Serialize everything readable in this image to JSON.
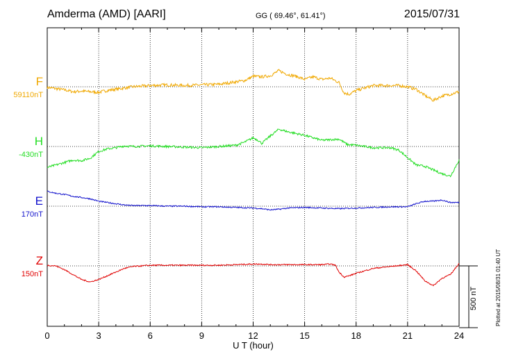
{
  "header": {
    "station": "Amderma (AMD)  [AARI]",
    "coords": "GG ( 69.46°,  61.41°)",
    "date": "2015/07/31"
  },
  "footer": {
    "xlabel": "U T (hour)",
    "plotted": "Plotted at 2015/08/31 01:40 UT",
    "scale_label": "500 nT"
  },
  "chart_data": {
    "type": "line",
    "x_unit": "hour (UT)",
    "xlim": [
      0,
      24
    ],
    "x_ticks": [
      "0",
      "3",
      "6",
      "9",
      "12",
      "15",
      "18",
      "21",
      "24"
    ],
    "grid": true,
    "scale_bar_nT": 500,
    "series": [
      {
        "name": "F",
        "baseline_label": "59110nT",
        "color": "#f0a800",
        "noise": 12,
        "x": [
          0,
          0.5,
          1,
          1.5,
          2,
          2.5,
          3,
          3.5,
          4,
          4.5,
          5,
          6,
          7,
          8,
          9,
          10,
          11,
          11.5,
          12,
          12.5,
          13,
          13.5,
          14,
          14.5,
          15,
          15.5,
          16,
          16.5,
          17,
          17.3,
          17.6,
          18,
          18.5,
          19,
          20,
          20.5,
          21,
          21.5,
          22,
          22.5,
          23,
          23.5,
          24
        ],
        "y": [
          -5,
          -15,
          -25,
          -40,
          -35,
          -40,
          -45,
          -30,
          -20,
          -10,
          0,
          10,
          15,
          10,
          15,
          20,
          40,
          50,
          85,
          80,
          90,
          130,
          100,
          85,
          60,
          80,
          60,
          70,
          35,
          -50,
          -60,
          -30,
          -10,
          10,
          10,
          10,
          0,
          -20,
          -70,
          -110,
          -75,
          -60,
          -40
        ]
      },
      {
        "name": "H",
        "baseline_label": "-430nT",
        "color": "#22dd22",
        "noise": 9,
        "x": [
          0,
          0.5,
          1,
          1.5,
          2,
          2.5,
          3,
          3.5,
          4,
          4.5,
          5,
          6,
          7,
          8,
          9,
          10,
          11,
          11.5,
          12,
          12.3,
          12.5,
          13,
          13.5,
          14,
          15,
          15.5,
          16,
          17,
          17.5,
          18,
          18.5,
          19,
          20,
          20.5,
          21,
          21.5,
          22,
          22.5,
          23,
          23.5,
          24
        ],
        "y": [
          -170,
          -150,
          -130,
          -110,
          -115,
          -95,
          -40,
          -20,
          -10,
          5,
          0,
          5,
          0,
          -5,
          -10,
          0,
          10,
          35,
          70,
          50,
          25,
          85,
          140,
          120,
          90,
          70,
          50,
          60,
          15,
          10,
          0,
          -10,
          -10,
          -30,
          -90,
          -150,
          -160,
          -190,
          -220,
          -240,
          -110
        ]
      },
      {
        "name": "E",
        "baseline_label": "170nT",
        "color": "#1010cc",
        "noise": 5,
        "x": [
          0,
          0.5,
          1,
          1.5,
          2,
          2.5,
          3,
          3.5,
          4,
          4.5,
          5,
          6,
          7,
          8,
          9,
          10,
          11,
          12,
          12.5,
          13,
          13.5,
          14,
          15,
          16,
          17,
          18,
          19,
          20,
          21,
          21.5,
          22,
          22.5,
          23,
          23.5,
          24
        ],
        "y": [
          120,
          105,
          95,
          80,
          70,
          60,
          40,
          30,
          20,
          10,
          5,
          5,
          0,
          0,
          -5,
          -5,
          -10,
          -15,
          -20,
          -30,
          -25,
          -15,
          -10,
          -15,
          -20,
          -15,
          -10,
          -5,
          -5,
          20,
          40,
          40,
          50,
          30,
          30
        ]
      },
      {
        "name": "Z",
        "baseline_label": "150nT",
        "color": "#e00000",
        "noise": 5,
        "x": [
          0,
          0.5,
          1,
          1.5,
          2,
          2.5,
          3,
          3.5,
          4,
          4.5,
          5,
          6,
          7,
          8,
          9,
          10,
          11,
          12,
          12.5,
          13,
          14,
          15,
          16,
          16.5,
          16.8,
          17,
          17.3,
          17.6,
          18,
          19,
          20,
          21,
          21.5,
          22,
          22.5,
          23,
          23.5,
          24
        ],
        "y": [
          5,
          0,
          -30,
          -70,
          -110,
          -130,
          -110,
          -80,
          -50,
          -20,
          -5,
          5,
          5,
          5,
          5,
          5,
          10,
          15,
          15,
          10,
          10,
          10,
          10,
          15,
          5,
          -50,
          -90,
          -80,
          -60,
          -20,
          -5,
          10,
          -40,
          -120,
          -160,
          -100,
          -70,
          20
        ]
      }
    ]
  }
}
